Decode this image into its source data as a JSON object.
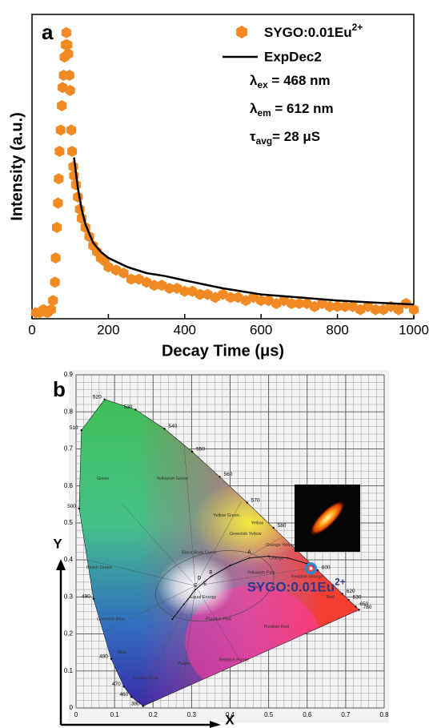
{
  "chart_data": [
    {
      "type": "scatter",
      "panel": "a",
      "xlabel": "Decay Time (μs)",
      "ylabel": "Intensity (a.u.)",
      "xlim": [
        0,
        1000
      ],
      "xticks": [
        0,
        200,
        400,
        600,
        800,
        1000
      ],
      "ylim": [
        0,
        1
      ],
      "series": [
        {
          "name": {
            "text": "SYGO:0.01Eu",
            "sup": "2+"
          },
          "type": "scatter",
          "color": "#f28a24",
          "x": [
            10,
            20,
            30,
            40,
            50,
            55,
            60,
            62,
            65,
            68,
            70,
            72,
            75,
            78,
            80,
            83,
            85,
            88,
            90,
            93,
            95,
            98,
            100,
            103,
            105,
            108,
            110,
            115,
            120,
            125,
            130,
            140,
            150,
            160,
            170,
            180,
            190,
            200,
            220,
            240,
            260,
            280,
            300,
            320,
            340,
            360,
            380,
            400,
            420,
            440,
            460,
            480,
            500,
            520,
            540,
            560,
            580,
            600,
            620,
            640,
            660,
            680,
            700,
            720,
            740,
            760,
            780,
            800,
            820,
            840,
            860,
            880,
            900,
            920,
            940,
            960,
            980,
            1000
          ],
          "y": [
            0.02,
            0.02,
            0.03,
            0.02,
            0.03,
            0.06,
            0.12,
            0.2,
            0.3,
            0.38,
            0.46,
            0.55,
            0.62,
            0.7,
            0.76,
            0.8,
            0.86,
            0.9,
            0.94,
            0.9,
            0.87,
            0.8,
            0.75,
            0.62,
            0.55,
            0.5,
            0.47,
            0.44,
            0.4,
            0.36,
            0.33,
            0.3,
            0.27,
            0.24,
            0.22,
            0.2,
            0.19,
            0.17,
            0.16,
            0.15,
            0.13,
            0.13,
            0.12,
            0.11,
            0.11,
            0.1,
            0.1,
            0.09,
            0.09,
            0.08,
            0.08,
            0.07,
            0.08,
            0.07,
            0.07,
            0.06,
            0.07,
            0.06,
            0.06,
            0.05,
            0.06,
            0.05,
            0.05,
            0.05,
            0.04,
            0.05,
            0.04,
            0.04,
            0.04,
            0.04,
            0.03,
            0.04,
            0.03,
            0.03,
            0.04,
            0.03,
            0.05,
            0.03
          ]
        },
        {
          "name": "ExpDec2",
          "type": "line",
          "color": "#000000",
          "x": [
            110,
            120,
            130,
            140,
            160,
            180,
            200,
            250,
            300,
            350,
            400,
            500,
            600,
            700,
            800,
            900,
            1000
          ],
          "y": [
            0.53,
            0.43,
            0.36,
            0.31,
            0.25,
            0.22,
            0.2,
            0.17,
            0.15,
            0.14,
            0.126,
            0.1,
            0.08,
            0.07,
            0.06,
            0.053,
            0.047
          ]
        }
      ],
      "annotations": [
        {
          "text": "λ",
          "sub": "ex",
          "rest": " = 468 nm"
        },
        {
          "text": "λ",
          "sub": "em",
          "rest": " = 612 nm"
        },
        {
          "text": "τ",
          "sub": "avg",
          "rest": "= 28 μS"
        }
      ]
    },
    {
      "type": "chromaticity",
      "panel": "b",
      "xlabel": "X",
      "ylabel": "Y",
      "xlim": [
        0,
        0.8
      ],
      "xticks": [
        0,
        0.1,
        0.2,
        0.3,
        0.4,
        0.5,
        0.6,
        0.7,
        0.8
      ],
      "ylim": [
        0,
        0.9
      ],
      "yticks": [
        0,
        0.1,
        0.2,
        0.3,
        0.4,
        0.5,
        0.6,
        0.7,
        0.8,
        0.9
      ],
      "locus": {
        "wavelengths": [
          380,
          460,
          470,
          480,
          490,
          500,
          510,
          520,
          530,
          540,
          550,
          560,
          570,
          580,
          590,
          600,
          620,
          630,
          650,
          780
        ],
        "x": [
          0.1741,
          0.144,
          0.1241,
          0.0913,
          0.0454,
          0.0082,
          0.0139,
          0.0743,
          0.1547,
          0.2296,
          0.3016,
          0.3731,
          0.4441,
          0.5125,
          0.5752,
          0.627,
          0.6915,
          0.7079,
          0.726,
          0.7347
        ],
        "y": [
          0.005,
          0.0297,
          0.0578,
          0.1327,
          0.295,
          0.5384,
          0.7502,
          0.8338,
          0.8059,
          0.7543,
          0.6923,
          0.6245,
          0.5547,
          0.4866,
          0.4242,
          0.3725,
          0.3083,
          0.292,
          0.274,
          0.2653
        ]
      },
      "regions": [
        "Green",
        "Yellowish Green",
        "Yellow Green",
        "Greenish Yellow",
        "Yellow",
        "Orange Yellow",
        "Orange",
        "Reddish Orange",
        "Red",
        "Yellowish Pink",
        "Pink",
        "Purplish Pink",
        "Purplish Red",
        "Reddish Purple",
        "Purple",
        "Purplish Blue",
        "Blue",
        "Greenish Blue",
        "Bluish Green",
        "Equal Energy",
        "Black Body Curve"
      ],
      "points": [
        "A",
        "B",
        "C",
        "D",
        "E"
      ],
      "series": [
        {
          "name": {
            "text": "SYGO:0.01Eu",
            "sup": "2+"
          },
          "color": "#1a8fd8",
          "label_color": "#2b3990",
          "x": [
            0.61
          ],
          "y": [
            0.377
          ]
        }
      ]
    }
  ]
}
